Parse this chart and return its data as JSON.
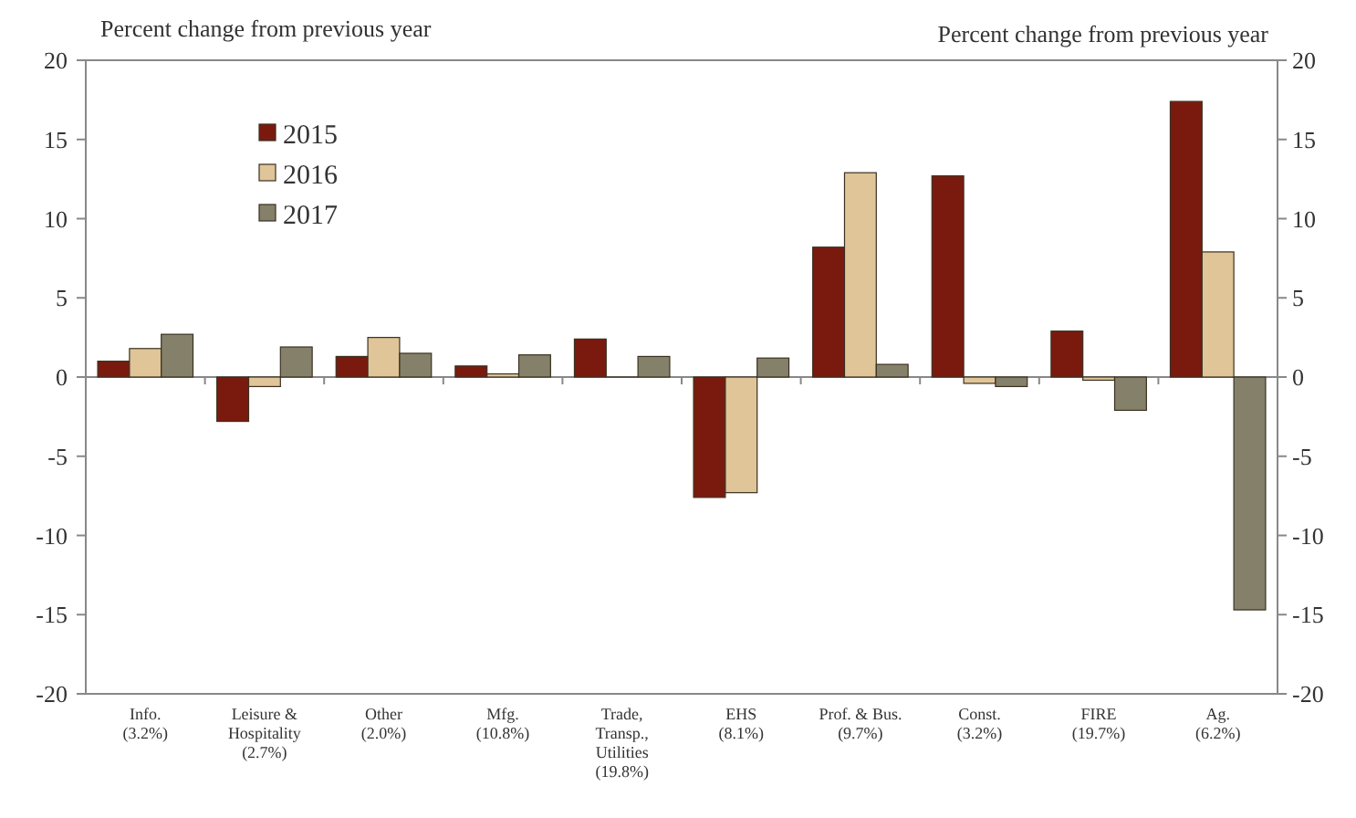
{
  "chart_data": {
    "type": "bar",
    "ylabel": "Percent change from previous year",
    "y2label": "Percent change from previous year",
    "categories": [
      "Info.\n(3.2%)",
      "Leisure &\nHospitality\n(2.7%)",
      "Other\n(2.0%)",
      "Mfg.\n(10.8%)",
      "Trade,\nTransp.,\nUtilities\n(19.8%)",
      "EHS\n(8.1%)",
      "Prof. & Bus.\n(9.7%)",
      "Const.\n(3.2%)",
      "FIRE\n(19.7%)",
      "Ag.\n(6.2%)"
    ],
    "series": [
      {
        "name": "2015",
        "color": "#7a1a0e",
        "values": [
          1.0,
          -2.8,
          1.3,
          0.7,
          2.4,
          -7.6,
          8.2,
          12.7,
          2.9,
          17.4
        ]
      },
      {
        "name": "2016",
        "color": "#dfc598",
        "values": [
          1.8,
          -0.6,
          2.5,
          0.2,
          0,
          -7.3,
          12.9,
          -0.4,
          -0.2,
          7.9
        ]
      },
      {
        "name": "2017",
        "color": "#85806a",
        "values": [
          2.7,
          1.9,
          1.5,
          1.4,
          1.3,
          1.2,
          0.8,
          -0.6,
          -2.1,
          -14.7
        ]
      }
    ],
    "ylim": [
      -20,
      20
    ],
    "yticks": [
      -20,
      -15,
      -10,
      -5,
      0,
      5,
      10,
      15,
      20
    ],
    "y2lim": [
      -20,
      20
    ],
    "y2ticks": [
      -20,
      -15,
      -10,
      -5,
      0,
      5,
      10,
      15,
      20
    ],
    "legend": "top left"
  }
}
